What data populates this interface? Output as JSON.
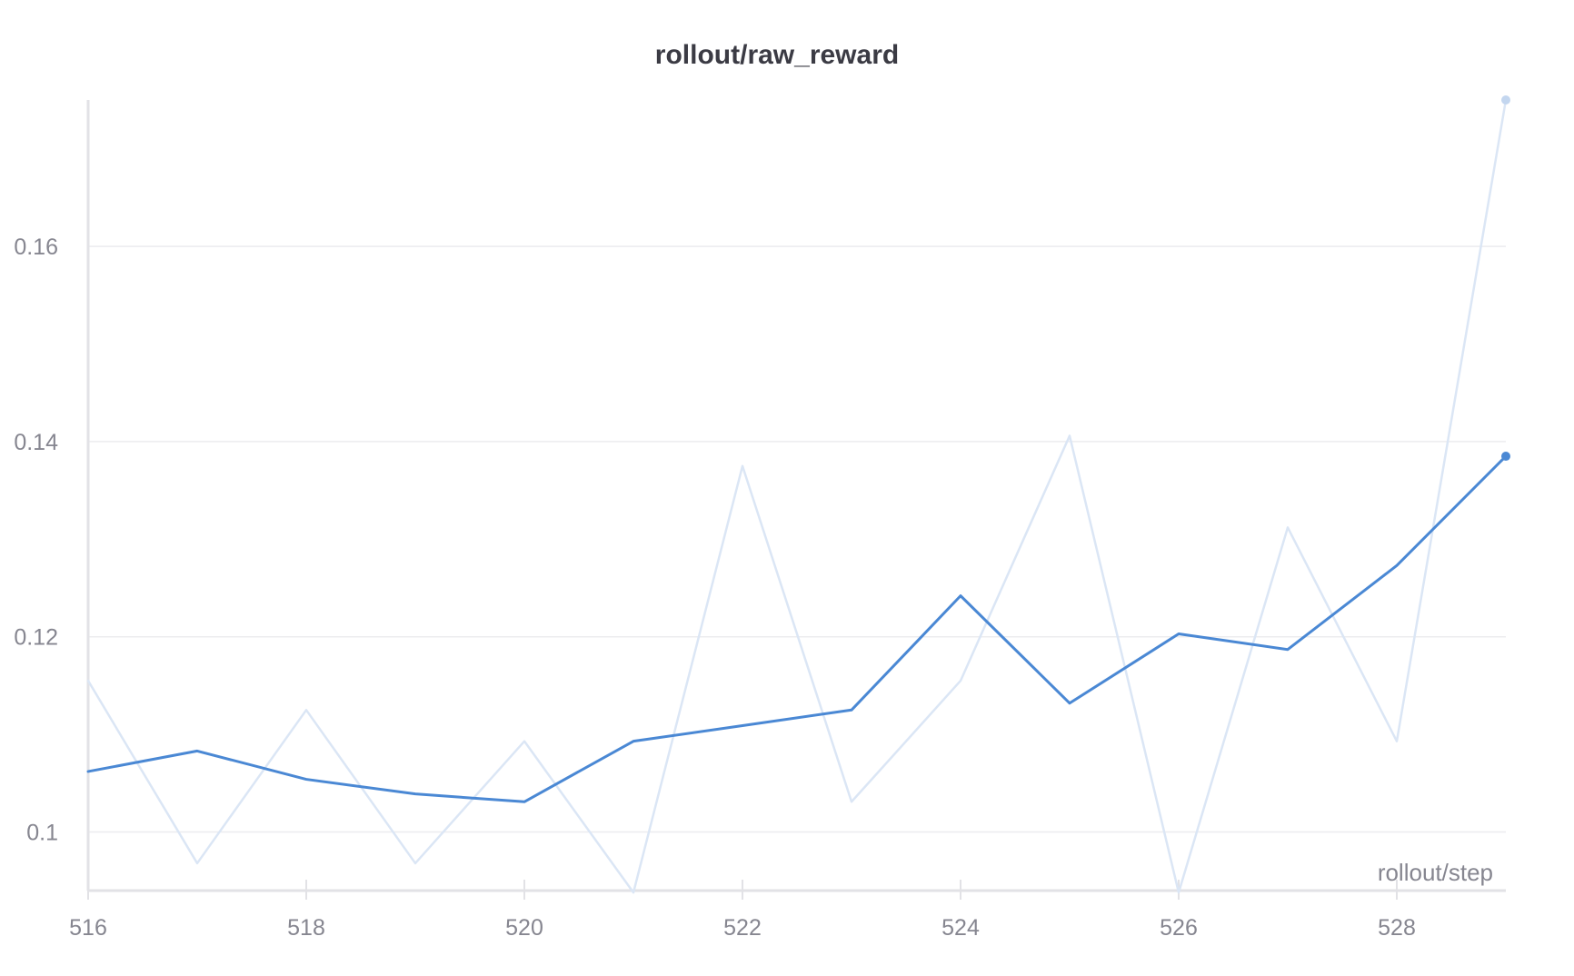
{
  "chart_data": {
    "type": "line",
    "title": "rollout/raw_reward",
    "xlabel": "rollout/step",
    "ylabel": "",
    "x": [
      516,
      517,
      518,
      519,
      520,
      521,
      522,
      523,
      524,
      525,
      526,
      527,
      528,
      529
    ],
    "xlim": [
      516,
      529
    ],
    "ylim": [
      0.094,
      0.175
    ],
    "xticks": [
      516,
      518,
      520,
      522,
      524,
      526,
      528
    ],
    "yticks": [
      0.1,
      0.12,
      0.14,
      0.16
    ],
    "xtick_labels": [
      "516",
      "518",
      "520",
      "522",
      "524",
      "526",
      "528"
    ],
    "ytick_labels": [
      "0.1",
      "0.12",
      "0.14",
      "0.16"
    ],
    "grid": "horizontal",
    "series": [
      {
        "role": "raw",
        "color": "#dbe6f5",
        "values": [
          0.1155,
          0.0968,
          0.1125,
          0.0968,
          0.1093,
          0.0938,
          0.1375,
          0.1031,
          0.1155,
          0.1406,
          0.0938,
          0.1312,
          0.1093,
          0.175
        ]
      },
      {
        "role": "smoothed",
        "color": "#4a88d4",
        "values": [
          0.1062,
          0.1083,
          0.1054,
          0.1039,
          0.1031,
          0.1093,
          0.1109,
          0.1125,
          0.1242,
          0.1132,
          0.1203,
          0.1187,
          0.1273,
          0.1385
        ]
      }
    ]
  }
}
